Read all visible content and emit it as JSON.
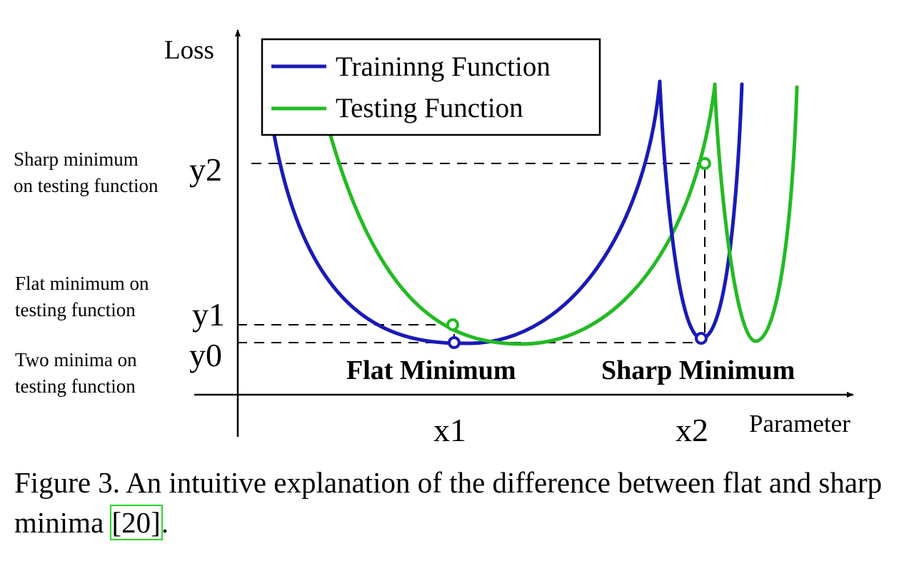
{
  "legend": {
    "training": "Traininng Function",
    "testing": "Testing Function"
  },
  "axes": {
    "y_label": "Loss",
    "x_label": "Parameter",
    "x_ticks": [
      "x1",
      "x2"
    ],
    "y_ticks": [
      "y2",
      "y1",
      "y0"
    ]
  },
  "annotations": {
    "sharp_test_line1": "Sharp minimum",
    "sharp_test_line2": "on testing function",
    "flat_test_line1": "Flat minimum on",
    "flat_test_line2": "testing function",
    "two_minima_line1": "Two minima on",
    "two_minima_line2": "testing function",
    "flat_minimum": "Flat Minimum",
    "sharp_minimum": "Sharp Minimum"
  },
  "caption": {
    "text_before": "Figure 3. An intuitive explanation of the difference between flat and sharp minima ",
    "ref_open": "[",
    "ref_number": "20",
    "ref_close": "]",
    "text_after": "."
  },
  "colors": {
    "training": "#1a1ab8",
    "testing": "#22bb22",
    "axis": "#000000"
  }
}
